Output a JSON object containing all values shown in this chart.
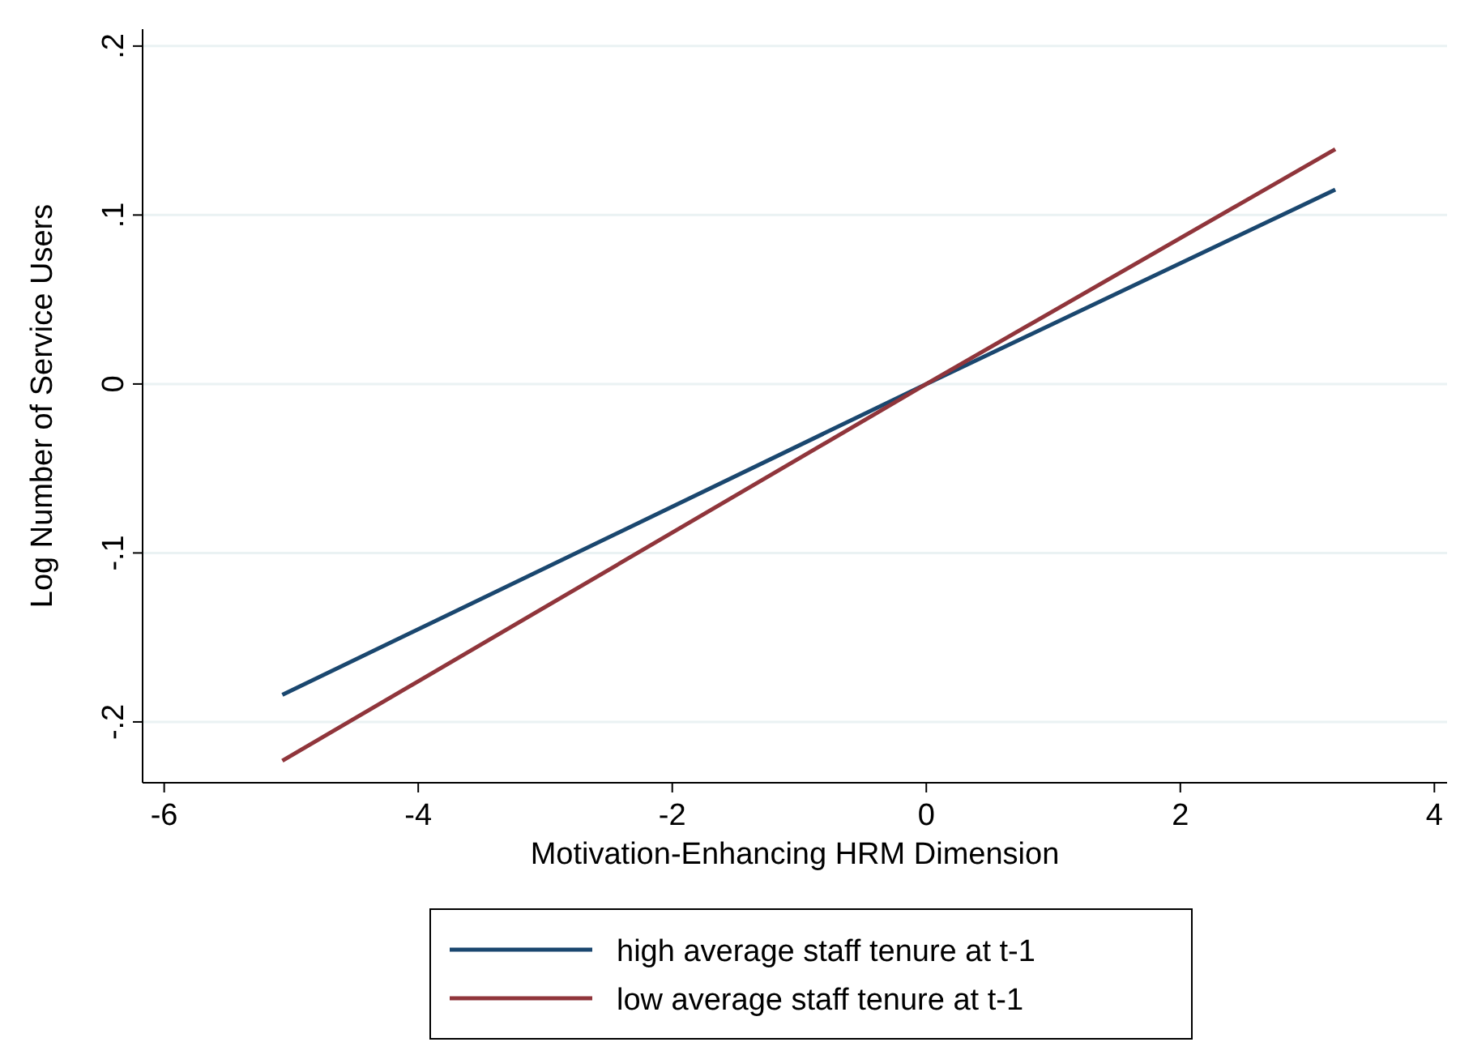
{
  "chart_data": {
    "type": "line",
    "xlabel": "Motivation-Enhancing HRM Dimension",
    "ylabel": "Log Number of Service Users",
    "x": [
      -5.07,
      0,
      3.22
    ],
    "series": [
      {
        "name": "high average staff tenure at t-1",
        "color": "#1a476f",
        "values": [
          -0.184,
          0,
          0.115
        ]
      },
      {
        "name": "low average staff tenure at t-1",
        "color": "#90353b",
        "values": [
          -0.223,
          0,
          0.139
        ]
      }
    ],
    "xlim": [
      -6.17,
      4.1
    ],
    "xticks": [
      -6,
      -4,
      -2,
      0,
      2,
      4
    ],
    "ylim": [
      -0.236,
      0.21
    ],
    "yticks": [
      {
        "value": -0.2,
        "label": "-.2"
      },
      {
        "value": -0.1,
        "label": "-.1"
      },
      0,
      {
        "value": 0.1,
        "label": ".1"
      },
      {
        "value": 0.2,
        "label": ".2"
      }
    ],
    "grid": "y",
    "legend": "bottom",
    "marker": "none",
    "line_style": "solid"
  }
}
